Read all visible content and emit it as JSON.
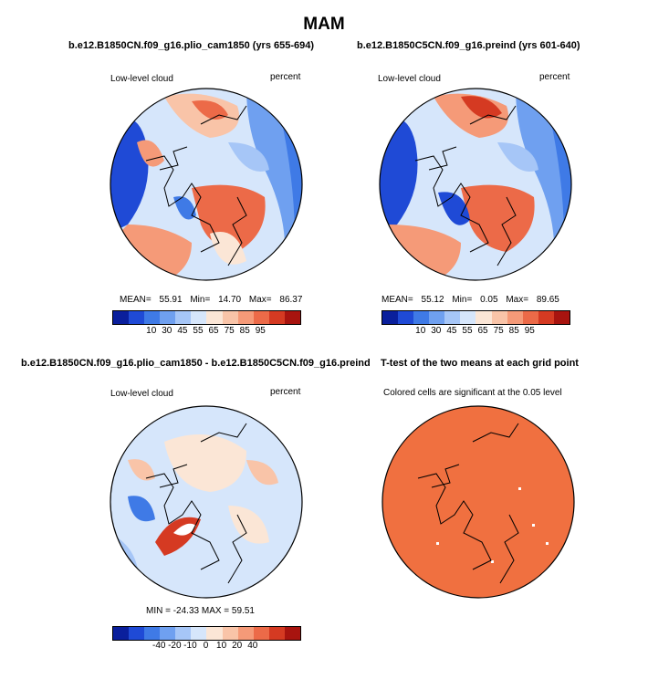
{
  "title": "MAM",
  "panels": [
    {
      "case": "b.e12.B1850CN.f09_g16.plio_cam1850 (yrs 655-694)",
      "left_label": "Low-level cloud",
      "right_label": "percent",
      "stats": {
        "mean_label": "MEAN=",
        "mean": "55.91",
        "min_label": "Min=",
        "min": "14.70",
        "max_label": "Max=",
        "max": "86.37"
      },
      "colorbar": {
        "colors": [
          "#0a1f9c",
          "#1f4ad6",
          "#3f7ae6",
          "#6fa0f0",
          "#a6c6f7",
          "#d6e6fb",
          "#fbe6d6",
          "#f9c4a8",
          "#f59a78",
          "#ec6a48",
          "#d53a22",
          "#a8140f"
        ],
        "ticks": [
          "10",
          "30",
          "45",
          "55",
          "65",
          "75",
          "85",
          "95"
        ]
      }
    },
    {
      "case": "b.e12.B1850C5CN.f09_g16.preind (yrs 601-640)",
      "left_label": "Low-level cloud",
      "right_label": "percent",
      "stats": {
        "mean_label": "MEAN=",
        "mean": "55.12",
        "min_label": "Min=",
        "min": "0.05",
        "max_label": "Max=",
        "max": "89.65"
      },
      "colorbar": {
        "colors": [
          "#0a1f9c",
          "#1f4ad6",
          "#3f7ae6",
          "#6fa0f0",
          "#a6c6f7",
          "#d6e6fb",
          "#fbe6d6",
          "#f9c4a8",
          "#f59a78",
          "#ec6a48",
          "#d53a22",
          "#a8140f"
        ],
        "ticks": [
          "10",
          "30",
          "45",
          "55",
          "65",
          "75",
          "85",
          "95"
        ]
      }
    },
    {
      "case": "b.e12.B1850CN.f09_g16.plio_cam1850 - b.e12.B1850C5CN.f09_g16.preind",
      "left_label": "Low-level cloud",
      "right_label": "percent",
      "stats_line": "MIN = -24.33  MAX =  59.51",
      "colorbar": {
        "colors": [
          "#0a1f9c",
          "#1f4ad6",
          "#3f7ae6",
          "#6fa0f0",
          "#a6c6f7",
          "#d6e6fb",
          "#fbe6d6",
          "#f9c4a8",
          "#f59a78",
          "#ec6a48",
          "#d53a22",
          "#a8140f"
        ],
        "ticks": [
          "-40",
          "-20",
          "-10",
          "0",
          "10",
          "20",
          "40"
        ]
      }
    },
    {
      "case": "T-test of the two means at each grid point",
      "subtitle": "Colored cells are significant at the 0.05 level",
      "fill": "#f07040"
    }
  ]
}
